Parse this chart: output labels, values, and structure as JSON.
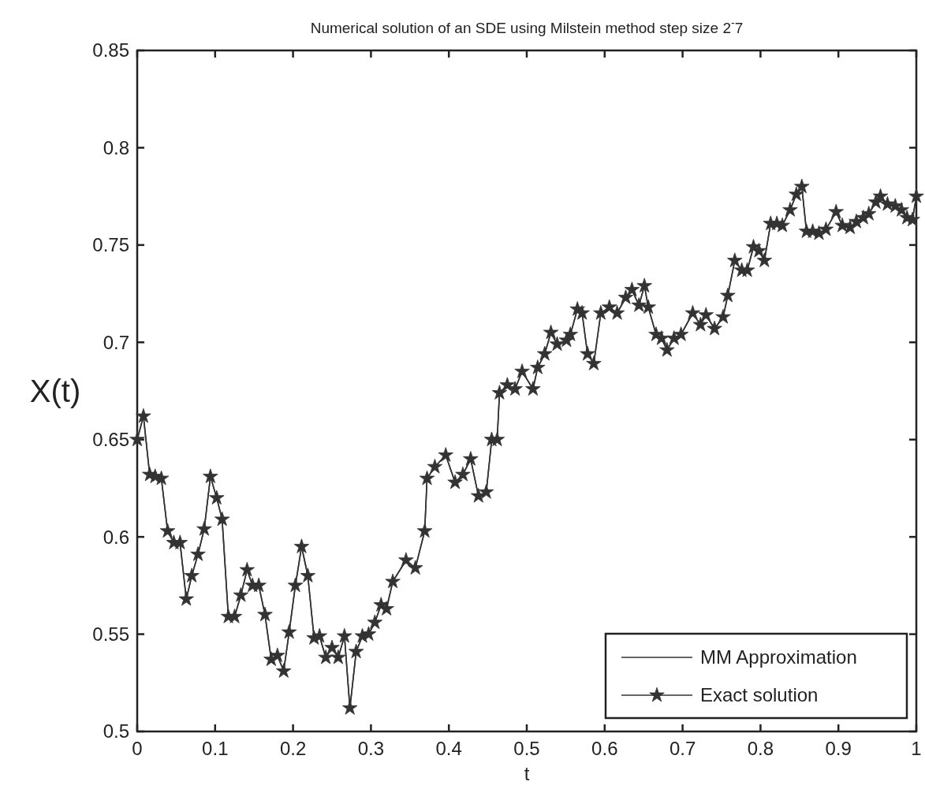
{
  "chart_data": {
    "type": "line",
    "title": "Numerical solution of an SDE using Milstein method step size 2$^{-}$7",
    "xlabel": "t",
    "ylabel": "X(t)",
    "x": [
      0,
      0.008,
      0.016,
      0.023,
      0.031,
      0.039,
      0.047,
      0.055,
      0.063,
      0.07,
      0.078,
      0.086,
      0.094,
      0.102,
      0.109,
      0.117,
      0.125,
      0.133,
      0.141,
      0.148,
      0.156,
      0.164,
      0.172,
      0.18,
      0.188,
      0.195,
      0.203,
      0.211,
      0.219,
      0.227,
      0.234,
      0.242,
      0.25,
      0.258,
      0.266,
      0.273,
      0.281,
      0.289,
      0.297,
      0.305,
      0.313,
      0.32,
      0.328,
      0.345,
      0.357,
      0.369,
      0.372,
      0.382,
      0.396,
      0.408,
      0.418,
      0.428,
      0.438,
      0.448,
      0.455,
      0.462,
      0.465,
      0.475,
      0.485,
      0.494,
      0.508,
      0.514,
      0.523,
      0.531,
      0.539,
      0.551,
      0.556,
      0.565,
      0.571,
      0.578,
      0.586,
      0.595,
      0.606,
      0.616,
      0.627,
      0.635,
      0.644,
      0.651,
      0.656,
      0.666,
      0.673,
      0.68,
      0.689,
      0.698,
      0.713,
      0.723,
      0.73,
      0.741,
      0.752,
      0.758,
      0.767,
      0.776,
      0.783,
      0.791,
      0.798,
      0.805,
      0.813,
      0.821,
      0.828,
      0.838,
      0.846,
      0.853,
      0.859,
      0.867,
      0.875,
      0.884,
      0.897,
      0.905,
      0.915,
      0.923,
      0.932,
      0.939,
      0.948,
      0.954,
      0.963,
      0.973,
      0.981,
      0.988,
      0.995,
      1.0
    ],
    "series": [
      {
        "name": "Exact solution",
        "color": "#333333",
        "marker": "star",
        "values": [
          0.65,
          0.662,
          0.632,
          0.631,
          0.63,
          0.603,
          0.597,
          0.597,
          0.568,
          0.58,
          0.591,
          0.604,
          0.631,
          0.62,
          0.609,
          0.559,
          0.559,
          0.57,
          0.583,
          0.575,
          0.575,
          0.56,
          0.537,
          0.539,
          0.531,
          0.551,
          0.575,
          0.595,
          0.58,
          0.548,
          0.549,
          0.538,
          0.543,
          0.538,
          0.549,
          0.512,
          0.541,
          0.549,
          0.55,
          0.556,
          0.565,
          0.563,
          0.577,
          0.588,
          0.584,
          0.603,
          0.63,
          0.636,
          0.642,
          0.628,
          0.632,
          0.64,
          0.621,
          0.623,
          0.65,
          0.65,
          0.674,
          0.678,
          0.676,
          0.685,
          0.676,
          0.687,
          0.694,
          0.705,
          0.699,
          0.701,
          0.704,
          0.717,
          0.715,
          0.694,
          0.689,
          0.715,
          0.718,
          0.715,
          0.723,
          0.727,
          0.719,
          0.729,
          0.718,
          0.704,
          0.702,
          0.696,
          0.702,
          0.704,
          0.715,
          0.709,
          0.714,
          0.707,
          0.713,
          0.724,
          0.742,
          0.737,
          0.737,
          0.749,
          0.747,
          0.742,
          0.761,
          0.761,
          0.76,
          0.768,
          0.776,
          0.78,
          0.757,
          0.757,
          0.756,
          0.758,
          0.767,
          0.76,
          0.759,
          0.762,
          0.764,
          0.766,
          0.772,
          0.775,
          0.771,
          0.77,
          0.768,
          0.764,
          0.763,
          0.775
        ]
      },
      {
        "name": "MM Approximation",
        "color": "#333333",
        "marker": "none",
        "values": [
          0.65,
          0.662,
          0.632,
          0.631,
          0.63,
          0.603,
          0.597,
          0.597,
          0.568,
          0.58,
          0.591,
          0.604,
          0.631,
          0.62,
          0.609,
          0.559,
          0.559,
          0.57,
          0.583,
          0.575,
          0.575,
          0.56,
          0.537,
          0.539,
          0.531,
          0.551,
          0.575,
          0.595,
          0.58,
          0.548,
          0.549,
          0.538,
          0.543,
          0.538,
          0.549,
          0.512,
          0.541,
          0.549,
          0.55,
          0.556,
          0.565,
          0.563,
          0.577,
          0.588,
          0.584,
          0.603,
          0.63,
          0.636,
          0.642,
          0.628,
          0.632,
          0.64,
          0.621,
          0.623,
          0.65,
          0.65,
          0.674,
          0.678,
          0.676,
          0.685,
          0.676,
          0.687,
          0.694,
          0.705,
          0.699,
          0.701,
          0.704,
          0.717,
          0.715,
          0.694,
          0.689,
          0.715,
          0.718,
          0.715,
          0.723,
          0.727,
          0.719,
          0.729,
          0.718,
          0.704,
          0.702,
          0.696,
          0.702,
          0.704,
          0.715,
          0.709,
          0.714,
          0.707,
          0.713,
          0.724,
          0.742,
          0.737,
          0.737,
          0.749,
          0.747,
          0.742,
          0.761,
          0.761,
          0.76,
          0.768,
          0.776,
          0.78,
          0.757,
          0.757,
          0.756,
          0.758,
          0.767,
          0.76,
          0.759,
          0.762,
          0.764,
          0.766,
          0.772,
          0.775,
          0.771,
          0.77,
          0.768,
          0.764,
          0.763,
          0.775
        ]
      }
    ],
    "xlim": [
      0,
      1
    ],
    "xticks": [
      0,
      0.1,
      0.2,
      0.3,
      0.4,
      0.5,
      0.6,
      0.7,
      0.8,
      0.9,
      1
    ],
    "ylim": [
      0.5,
      0.85
    ],
    "yticks": [
      0.5,
      0.55,
      0.6,
      0.65,
      0.7,
      0.75,
      0.8,
      0.85
    ],
    "legend": "bottom right",
    "grid": false
  }
}
